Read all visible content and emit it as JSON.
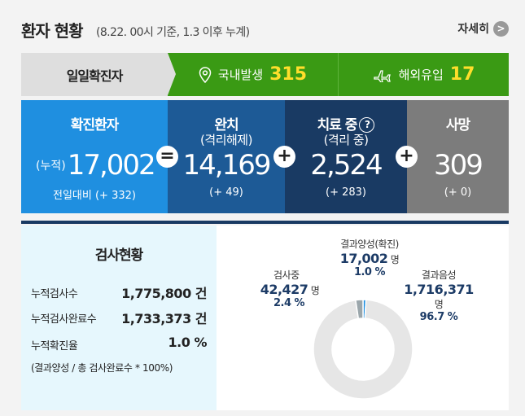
{
  "header": {
    "title": "환자 현황",
    "subtitle": "(8.22. 00시 기준, 1.3 이후 누계)",
    "more_label": "자세히",
    "more_icon": ">"
  },
  "daily": {
    "label": "일일확진자",
    "domestic": {
      "label": "국내발생",
      "value": "315",
      "icon": "map-pin-icon"
    },
    "overseas": {
      "label": "해외유입",
      "value": "17",
      "icon": "airplane-icon"
    }
  },
  "stats": {
    "confirmed": {
      "title": "확진환자",
      "prefix": "(누적)",
      "value": "17,002",
      "diff": "전일대비 (+ 332)"
    },
    "released": {
      "title": "완치",
      "sub": "(격리해제)",
      "value": "14,169",
      "diff": "(+ 49)"
    },
    "treating": {
      "title": "치료 중",
      "sub": "(격리 중)",
      "value": "2,524",
      "diff": "(+ 283)",
      "help": "?"
    },
    "deaths": {
      "title": "사망",
      "value": "309",
      "diff": "(+ 0)"
    },
    "ops": [
      "=",
      "+",
      "+"
    ]
  },
  "tests": {
    "title": "검사현황",
    "rows": [
      {
        "label": "누적검사수",
        "value": "1,775,800 건"
      },
      {
        "label": "누적검사완료수",
        "value": "1,733,373 건"
      },
      {
        "label": "누적확진율",
        "value": "1.0 %"
      }
    ],
    "note": "(결과양성 / 총 검사완료수 * 100%)"
  },
  "chart_data": {
    "type": "pie",
    "labels": [
      "결과양성(확진)",
      "검사중",
      "결과음성"
    ],
    "values": [
      17002,
      42427,
      1716371
    ],
    "percents": [
      1.0,
      2.4,
      96.7
    ],
    "value_labels": [
      "17,002",
      "42,427",
      "1,716,371"
    ],
    "percent_labels": [
      "1.0 %",
      "2.4 %",
      "96.7 %"
    ],
    "unit": "명",
    "colors": [
      "#1f8fe0",
      "#9ba6ab",
      "#e6e6e6"
    ]
  }
}
